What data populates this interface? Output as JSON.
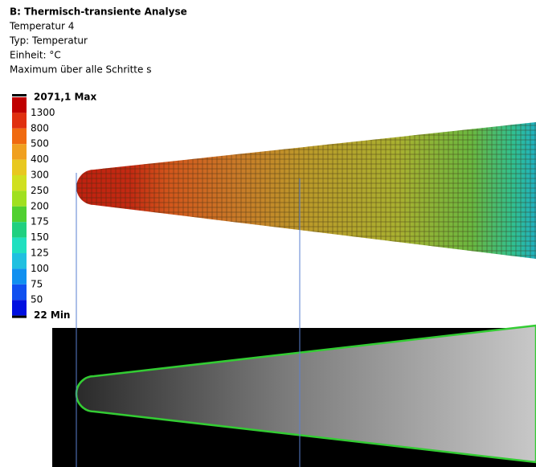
{
  "header": {
    "title": "B: Thermisch-transiente Analyse",
    "lines": [
      "Temperatur 4",
      "Typ: Temperatur",
      "Einheit: °C",
      "Maximum über alle Schritte s"
    ]
  },
  "legend": {
    "labels": [
      "2071,1 Max",
      "1300",
      "800",
      "500",
      "400",
      "300",
      "250",
      "200",
      "175",
      "150",
      "125",
      "100",
      "75",
      "50",
      "22 Min"
    ]
  }
}
